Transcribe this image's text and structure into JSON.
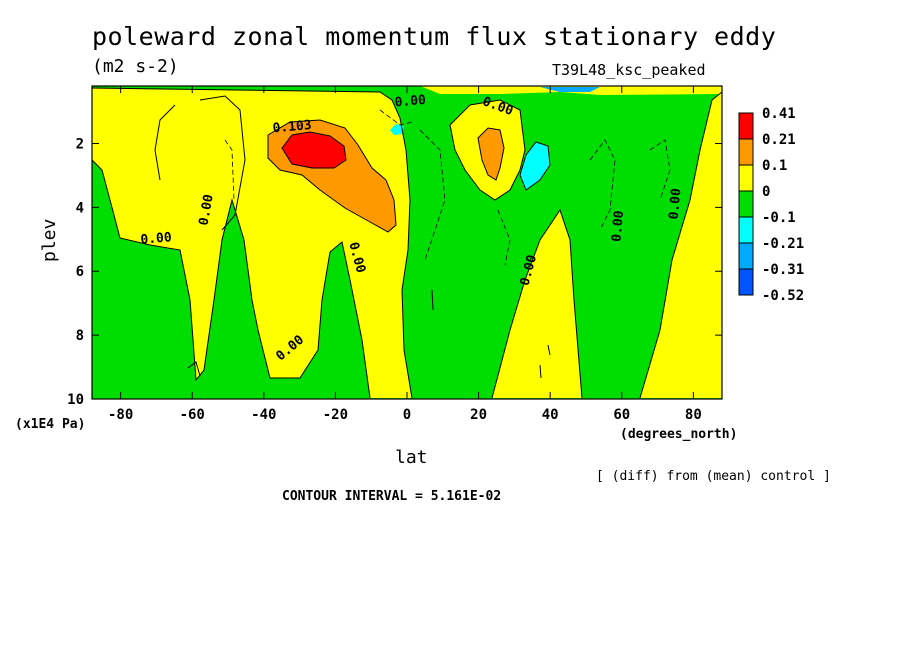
{
  "title": "poleward zonal momentum flux stationary eddy",
  "units": "(m2 s-2)",
  "run_label": "T39L48_ksc_peaked",
  "diff_note": "[ (diff) from (mean) control ]",
  "contour_interval": "CONTOUR INTERVAL = 5.161E-02",
  "chart_data": {
    "type": "heatmap",
    "title": "poleward zonal momentum flux stationary eddy",
    "xlabel": "lat",
    "xunit": "(degrees_north)",
    "ylabel": "plev",
    "yunit": "(x1E4 Pa)",
    "xlim": [
      -88,
      88
    ],
    "ylim": [
      10,
      0.2
    ],
    "x_ticks": [
      -80,
      -60,
      -40,
      -20,
      0,
      20,
      40,
      60,
      80
    ],
    "y_ticks": [
      2,
      4,
      6,
      8,
      10
    ],
    "colorbar": {
      "levels": [
        "0.41",
        "0.21",
        "0.1",
        "0",
        "-0.1",
        "-0.21",
        "-0.31",
        "-0.52"
      ],
      "colors": [
        "#ff0000",
        "#ff9900",
        "#ffff00",
        "#00dd00",
        "#00ffff",
        "#00aaff",
        "#0055ff"
      ]
    },
    "contour_labels": [
      {
        "text": "0.103",
        "lat": -32,
        "plev": 1.6,
        "angle": -5
      },
      {
        "text": "0.00",
        "lat": 1,
        "plev": 0.8,
        "angle": -5
      },
      {
        "text": "0.00",
        "lat": 25,
        "plev": 0.95,
        "angle": 20
      },
      {
        "text": "0.00",
        "lat": -55,
        "plev": 4.1,
        "angle": -80
      },
      {
        "text": "0.00",
        "lat": -70,
        "plev": 5.1,
        "angle": -5
      },
      {
        "text": "0.00",
        "lat": -15,
        "plev": 5.6,
        "angle": 75
      },
      {
        "text": "0.00",
        "lat": -32,
        "plev": 8.5,
        "angle": -40
      },
      {
        "text": "0.00",
        "lat": 35,
        "plev": 6.0,
        "angle": -75
      },
      {
        "text": "0.00",
        "lat": 60,
        "plev": 4.6,
        "angle": -85
      },
      {
        "text": "0.00",
        "lat": 76,
        "plev": 3.9,
        "angle": -85
      }
    ],
    "features": [
      {
        "level": "0.21..0.41",
        "lat": -26,
        "plev": 2.1
      },
      {
        "level": "0.1..0.21",
        "lat": -20,
        "plev": 3.0
      },
      {
        "level": "0.1..0.21",
        "lat": 25,
        "plev": 2.3
      },
      {
        "level": "-0.21..-0.1",
        "lat": 37,
        "plev": 2.6
      },
      {
        "level": "-0.21..-0.1",
        "lat": -3,
        "plev": 1.3
      }
    ]
  }
}
